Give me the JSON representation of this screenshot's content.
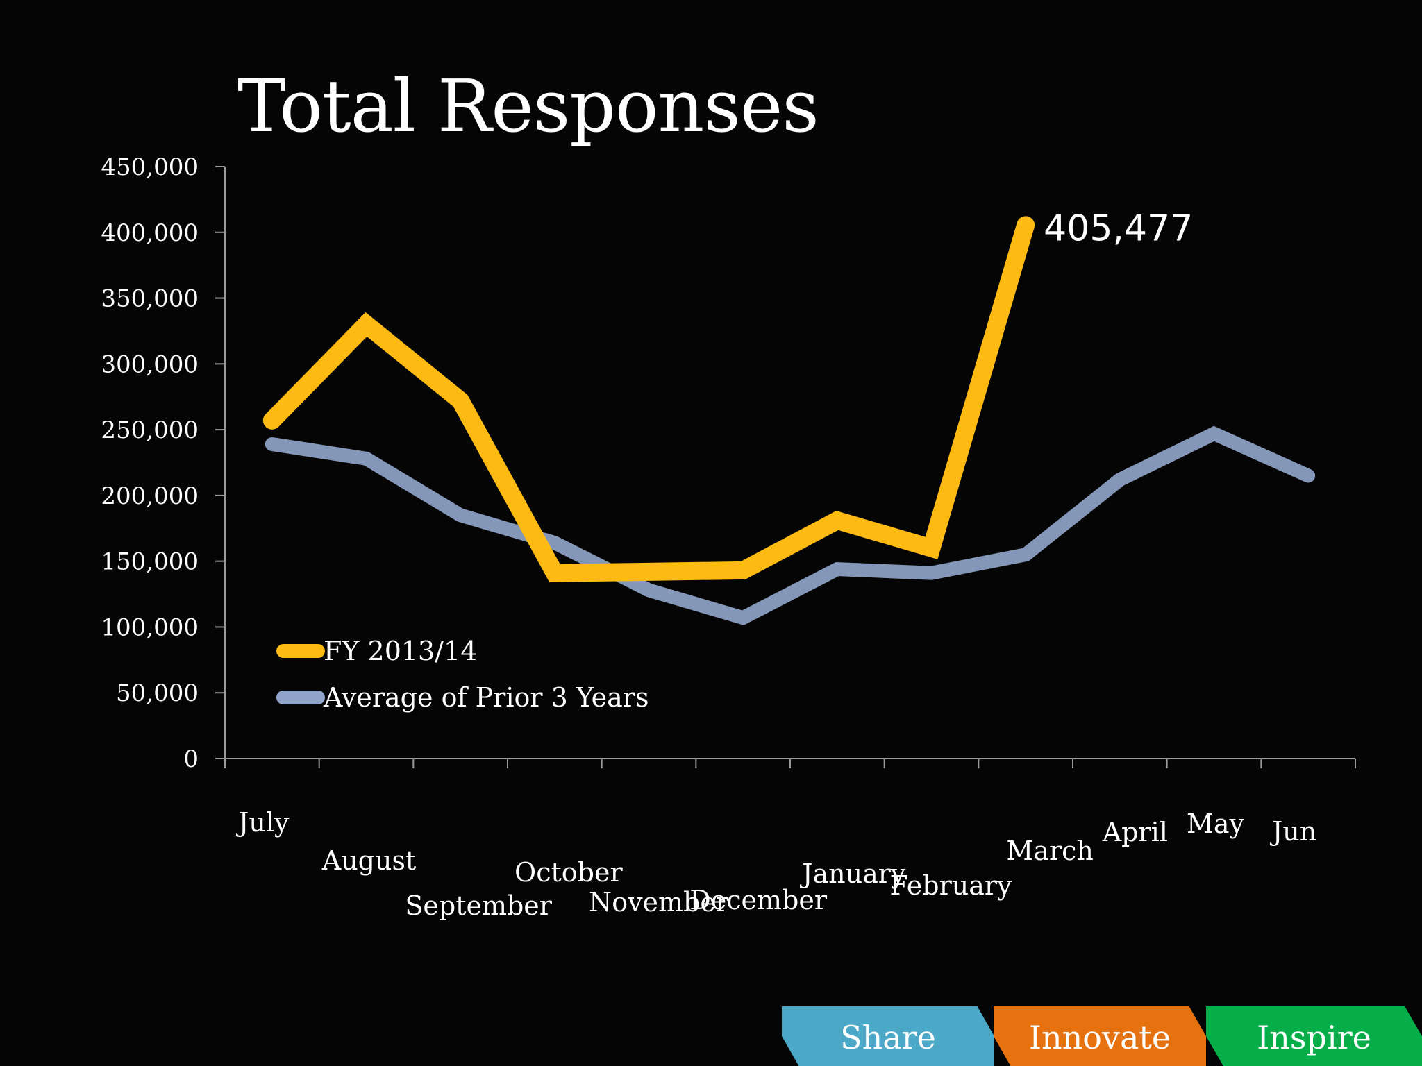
{
  "chart_data": {
    "type": "line",
    "title": "Total Responses",
    "categories": [
      "July",
      "August",
      "September",
      "October",
      "November",
      "December",
      "January",
      "February",
      "March",
      "April",
      "May",
      "Jun"
    ],
    "series": [
      {
        "name": "FY 2013/14",
        "color": "#FDBA12",
        "values": [
          257000,
          330000,
          272000,
          141000,
          142000,
          143000,
          181000,
          160000,
          405477,
          null,
          null,
          null
        ]
      },
      {
        "name": "Average of Prior 3 Years",
        "color": "#8FA4C8",
        "values": [
          239000,
          228000,
          185000,
          164000,
          128000,
          107000,
          144000,
          141000,
          155000,
          212000,
          247000,
          215000
        ]
      }
    ],
    "annotations": [
      {
        "series": 0,
        "index": 8,
        "text": "405,477"
      }
    ],
    "yticks": [
      "450,000",
      "400,000",
      "350,000",
      "300,000",
      "250,000",
      "200,000",
      "150,000",
      "100,000",
      "50,000",
      "0"
    ],
    "ylim": [
      0,
      450000
    ],
    "xlabel": "",
    "ylabel": "",
    "grid": false,
    "legend": "bottom-left"
  },
  "footer": {
    "tabs": [
      {
        "label": "Share",
        "color": "#4BA8C6"
      },
      {
        "label": "Innovate",
        "color": "#E5720F"
      },
      {
        "label": "Inspire",
        "color": "#06AE4A"
      }
    ]
  }
}
